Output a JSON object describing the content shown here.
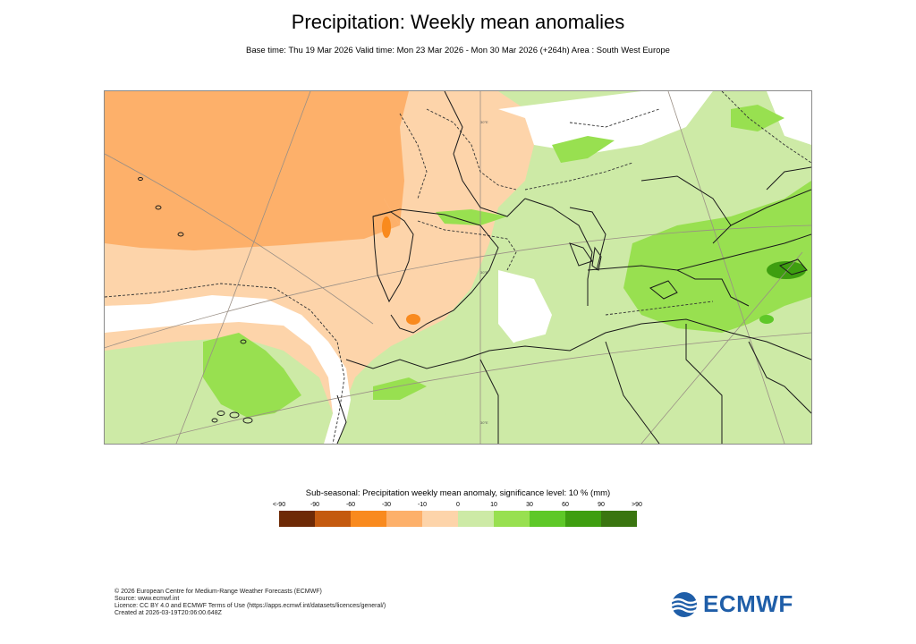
{
  "header": {
    "title": "Precipitation: Weekly mean anomalies",
    "subtitle": "Base time: Thu 19 Mar 2026 Valid time: Mon 23 Mar 2026 - Mon 30 Mar 2026 (+264h) Area : South West Europe"
  },
  "map": {
    "grid_labels": [
      "30°E",
      "30°E",
      "30°E"
    ]
  },
  "legend": {
    "title": "Sub-seasonal: Precipitation weekly mean anomaly, significance level: 10 % (mm)",
    "ticks": [
      "<-90",
      "-90",
      "-60",
      "-30",
      "-10",
      "0",
      "10",
      "30",
      "60",
      "90",
      ">90"
    ],
    "colors": [
      "#6e2a06",
      "#c45a0f",
      "#f98a1e",
      "#fdb06a",
      "#fdd4aa",
      "#ffffff",
      "#cdeaa6",
      "#98e050",
      "#5ec828",
      "#3e9e10",
      "#3a7510"
    ]
  },
  "footer": {
    "line1": "© 2026 European Centre for Medium-Range Weather Forecasts (ECMWF)",
    "line2": "Source: www.ecmwf.int",
    "line3": "Licence: CC BY 4.0 and ECMWF Terms of Use (https://apps.ecmwf.int/datasets/licences/general/)",
    "line4": "Created at 2026-03-19T20:06:00.648Z"
  },
  "logo": {
    "text": "ECMWF",
    "color": "#1f5ea8"
  }
}
